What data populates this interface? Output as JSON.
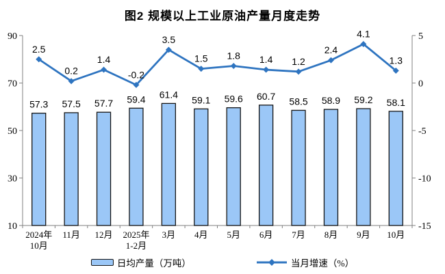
{
  "title": "图2 规模以上工业原油产量月度走势",
  "chart_data": {
    "type": "bar",
    "subtype": "combo-bar-line",
    "title": "图2 规模以上工业原油产量月度走势",
    "categories": [
      "2024年\n10月",
      "11月",
      "12月",
      "2025年\n1-2月",
      "3月",
      "4月",
      "5月",
      "6月",
      "7月",
      "8月",
      "9月",
      "10月"
    ],
    "series": [
      {
        "name": "日均产量（万吨）",
        "type": "bar",
        "axis": "left",
        "values": [
          57.3,
          57.5,
          57.7,
          59.4,
          61.4,
          59.1,
          59.6,
          60.7,
          58.5,
          58.9,
          59.2,
          58.1
        ]
      },
      {
        "name": "当月增速（%）",
        "type": "line",
        "axis": "right",
        "values": [
          2.5,
          0.2,
          1.4,
          -0.2,
          3.5,
          1.5,
          1.8,
          1.4,
          1.2,
          2.4,
          4.1,
          1.3
        ]
      }
    ],
    "left_axis": {
      "min": 10,
      "max": 90,
      "ticks": [
        10,
        30,
        50,
        70,
        90
      ]
    },
    "right_axis": {
      "min": -15,
      "max": 5,
      "ticks": [
        -15,
        -10,
        -5,
        0,
        5
      ]
    },
    "legend": [
      "日均产量（万吨）",
      "当月增速（%）"
    ],
    "legend_position": "bottom",
    "grid": false,
    "colors": {
      "bar_fill": "#9BC7F7",
      "bar_border": "#141414",
      "line": "#2E74C0",
      "axis": "#808080",
      "text": "#000000"
    }
  }
}
